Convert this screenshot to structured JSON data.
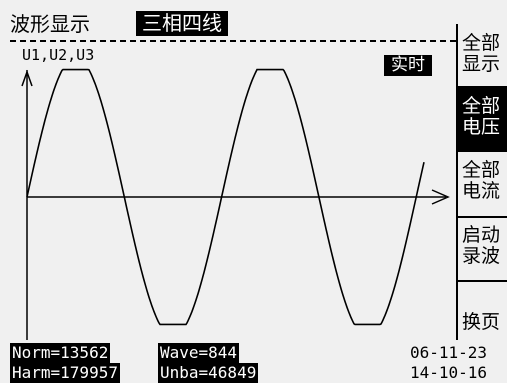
{
  "header": {
    "title": "波形显示",
    "mode": "三相四线",
    "channels": "U1,U2,U3",
    "live_badge": "实时"
  },
  "side_menu": {
    "items": [
      {
        "line1": "全部",
        "line2": "显示",
        "active": false
      },
      {
        "line1": "全部",
        "line2": "电压",
        "active": true
      },
      {
        "line1": "全部",
        "line2": "电流",
        "active": false
      },
      {
        "line1": "启动",
        "line2": "录波",
        "active": false
      },
      {
        "line1": "",
        "line2": "换页",
        "active": false
      }
    ]
  },
  "status": {
    "norm": "Norm=13562",
    "wave": "Wave=844",
    "harm": "Harm=179957",
    "unba": "Unba=46849",
    "date": "06-11-23",
    "time": "14-10-16"
  },
  "waveform": {
    "type": "line",
    "cycles_visible": 2,
    "clipped_peaks": true
  },
  "colors": {
    "background": "#f0f0f0",
    "foreground": "#000000"
  }
}
